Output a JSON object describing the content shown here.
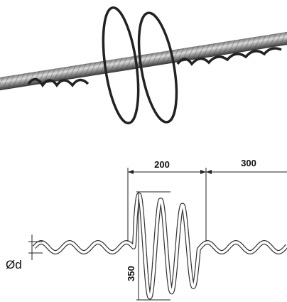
{
  "labels": {
    "width_a": "200",
    "width_b": "300",
    "height": "350",
    "diameter": "Ød"
  }
}
